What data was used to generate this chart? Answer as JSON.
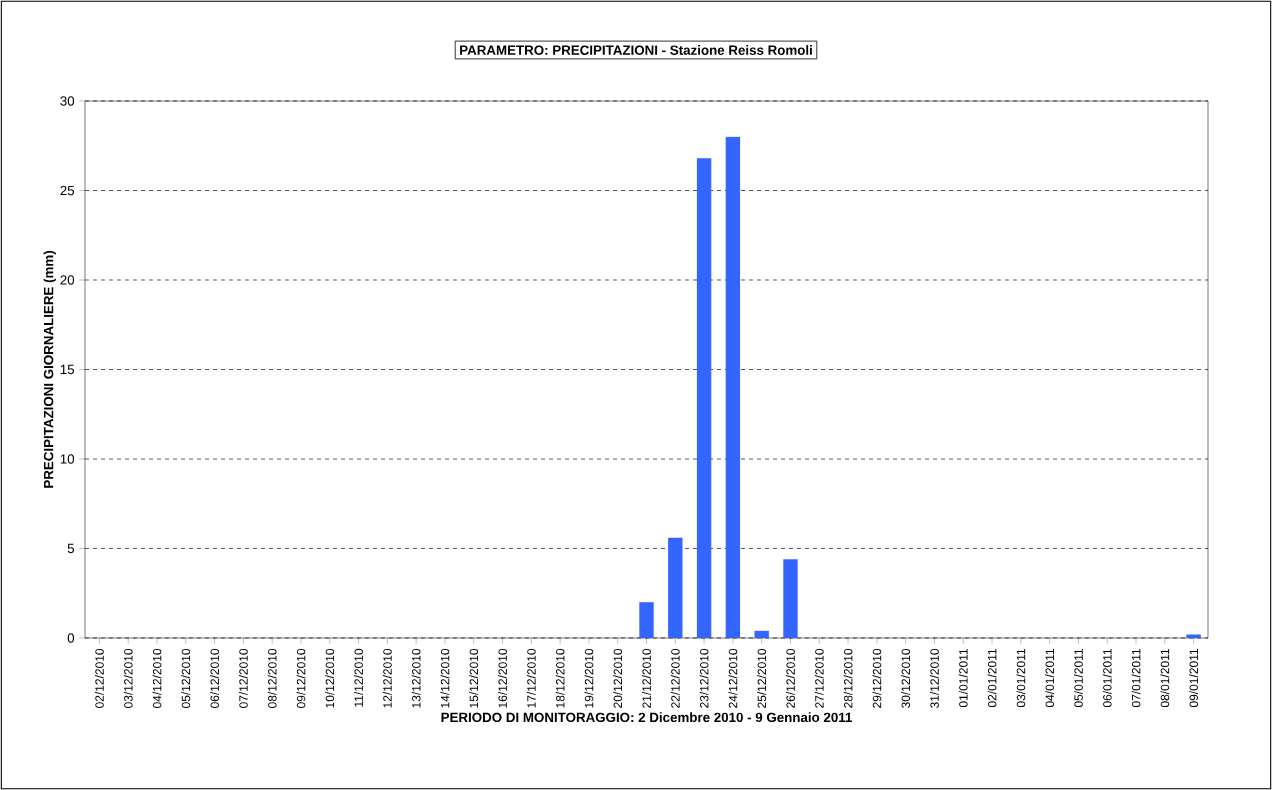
{
  "chart_data": {
    "type": "bar",
    "title": "PARAMETRO: PRECIPITAZIONI - Stazione Reiss Romoli",
    "xlabel": "PERIODO DI MONITORAGGIO: 2 Dicembre 2010 - 9 Gennaio 2011",
    "ylabel": "PRECIPITAZIONI GIORNALIERE (mm)",
    "categories": [
      "02/12/2010",
      "03/12/2010",
      "04/12/2010",
      "05/12/2010",
      "06/12/2010",
      "07/12/2010",
      "08/12/2010",
      "09/12/2010",
      "10/12/2010",
      "11/12/2010",
      "12/12/2010",
      "13/12/2010",
      "14/12/2010",
      "15/12/2010",
      "16/12/2010",
      "17/12/2010",
      "18/12/2010",
      "19/12/2010",
      "20/12/2010",
      "21/12/2010",
      "22/12/2010",
      "23/12/2010",
      "24/12/2010",
      "25/12/2010",
      "26/12/2010",
      "27/12/2010",
      "28/12/2010",
      "29/12/2010",
      "30/12/2010",
      "31/12/2010",
      "01/01/2011",
      "02/01/2011",
      "03/01/2011",
      "04/01/2011",
      "05/01/2011",
      "06/01/2011",
      "07/01/2011",
      "08/01/2011",
      "09/01/2011"
    ],
    "values": [
      0,
      0,
      0,
      0,
      0,
      0,
      0,
      0,
      0,
      0,
      0,
      0,
      0,
      0,
      0,
      0,
      0,
      0,
      0,
      2.0,
      5.6,
      26.8,
      28.0,
      0.4,
      4.4,
      0,
      0,
      0,
      0,
      0,
      0,
      0,
      0,
      0,
      0,
      0,
      0,
      0,
      0.2
    ],
    "color": "#3366ff",
    "ylim": [
      0,
      30
    ],
    "yticks": [
      0,
      5,
      10,
      15,
      20,
      25,
      30
    ],
    "grid": "y"
  }
}
